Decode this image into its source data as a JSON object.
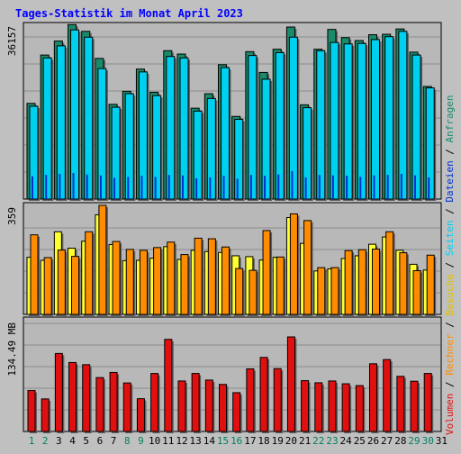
{
  "title": "Tages-Statistik im Monat April 2023",
  "colors": {
    "background": "#c0c0c0",
    "plot_bg": "#b8b8b8",
    "grid": "#8c8c8c",
    "title": "#0000ff",
    "anfragen": "#1a8a6a",
    "dateien": "#0030d0",
    "seiten": "#00d0f0",
    "besuche": "#ffff30",
    "rechner": "#ff8c00",
    "volumen": "#e01010",
    "weekday_label": "#000000",
    "weekend_label": "#008060"
  },
  "right_legend": {
    "top": {
      "separator": "/",
      "items": [
        {
          "text": "Anfragen",
          "color": "#1a8a6a"
        },
        {
          "text": "Dateien",
          "color": "#0030d0"
        },
        {
          "text": "Seiten",
          "color": "#00d0f0"
        },
        {
          "text": "Besuche",
          "color": "#e0c000"
        },
        {
          "text": "Rechner",
          "color": "#ff8c00"
        },
        {
          "text": "Volumen",
          "color": "#e01010"
        }
      ]
    }
  },
  "x_labels": [
    "1",
    "2",
    "3",
    "4",
    "5",
    "6",
    "7",
    "8",
    "9",
    "10",
    "11",
    "12",
    "13",
    "14",
    "15",
    "16",
    "17",
    "18",
    "19",
    "20",
    "21",
    "22",
    "23",
    "24",
    "25",
    "26",
    "27",
    "28",
    "29",
    "30",
    "31"
  ],
  "weekend_days": [
    1,
    2,
    8,
    9,
    15,
    16,
    22,
    23,
    29,
    30
  ],
  "chart_data": [
    {
      "type": "bar",
      "panel": "top",
      "ylabel": "36157",
      "ymax": 36157,
      "categories": [
        "1",
        "2",
        "3",
        "4",
        "5",
        "6",
        "7",
        "8",
        "9",
        "10",
        "11",
        "12",
        "13",
        "14",
        "15",
        "16",
        "17",
        "18",
        "19",
        "20",
        "21",
        "22",
        "23",
        "24",
        "25",
        "26",
        "27",
        "28",
        "29",
        "30",
        "31"
      ],
      "series": [
        {
          "name": "Anfragen",
          "values": [
            19800,
            29800,
            32700,
            36100,
            34700,
            29100,
            19600,
            22300,
            26900,
            22100,
            30700,
            30000,
            18800,
            21800,
            27800,
            17100,
            30500,
            26200,
            31000,
            35600,
            19500,
            31000,
            35100,
            33400,
            32800,
            34000,
            34100,
            35200,
            30400,
            23300,
            0
          ]
        },
        {
          "name": "Seiten",
          "values": [
            19200,
            29200,
            31700,
            35000,
            33500,
            27000,
            19000,
            21800,
            26300,
            21400,
            29500,
            29200,
            18200,
            20800,
            27200,
            16500,
            29700,
            24800,
            30300,
            33500,
            18900,
            30700,
            32400,
            32100,
            32200,
            33000,
            33600,
            34700,
            29800,
            23000,
            0
          ]
        },
        {
          "name": "Dateien",
          "values": [
            4700,
            5000,
            5200,
            5400,
            5100,
            4900,
            4400,
            4600,
            4800,
            4600,
            5000,
            4900,
            4300,
            4500,
            4800,
            4200,
            5000,
            4800,
            5100,
            5800,
            4500,
            5000,
            4900,
            4800,
            4600,
            4900,
            5000,
            5200,
            4900,
            4500,
            0
          ]
        }
      ]
    },
    {
      "type": "bar",
      "panel": "middle",
      "ylabel": "359",
      "ymax": 359,
      "categories": [
        "1",
        "2",
        "3",
        "4",
        "5",
        "6",
        "7",
        "8",
        "9",
        "10",
        "11",
        "12",
        "13",
        "14",
        "15",
        "16",
        "17",
        "18",
        "19",
        "20",
        "21",
        "22",
        "23",
        "24",
        "25",
        "26",
        "27",
        "28",
        "29",
        "30",
        "31"
      ],
      "series": [
        {
          "name": "Besuche",
          "values": [
            188,
            178,
            272,
            218,
            241,
            328,
            230,
            177,
            178,
            185,
            223,
            181,
            211,
            207,
            204,
            193,
            190,
            179,
            188,
            319,
            234,
            143,
            150,
            184,
            193,
            231,
            255,
            211,
            165,
            146,
            0
          ]
        },
        {
          "name": "Rechner",
          "values": [
            262,
            187,
            212,
            191,
            272,
            359,
            240,
            214,
            211,
            220,
            238,
            197,
            251,
            249,
            222,
            151,
            145,
            276,
            189,
            331,
            309,
            154,
            154,
            210,
            213,
            215,
            272,
            203,
            144,
            195,
            0
          ]
        }
      ]
    },
    {
      "type": "bar",
      "panel": "bottom",
      "ylabel": "134.49 MB",
      "ymax": 134.49,
      "categories": [
        "1",
        "2",
        "3",
        "4",
        "5",
        "6",
        "7",
        "8",
        "9",
        "10",
        "11",
        "12",
        "13",
        "14",
        "15",
        "16",
        "17",
        "18",
        "19",
        "20",
        "21",
        "22",
        "23",
        "24",
        "25",
        "26",
        "27",
        "28",
        "29",
        "30",
        "31"
      ],
      "series": [
        {
          "name": "Volumen",
          "values": [
            49.7,
            39.5,
            94.7,
            83.7,
            81.1,
            65.4,
            71.7,
            58.9,
            39.8,
            70.4,
            111.8,
            61.3,
            70.4,
            62.4,
            57.1,
            47.1,
            76.0,
            89.9,
            76.3,
            114.8,
            61.7,
            59.1,
            61.3,
            57.9,
            55.7,
            82.2,
            87.3,
            66.9,
            61.0,
            70.4,
            0
          ]
        }
      ]
    }
  ]
}
